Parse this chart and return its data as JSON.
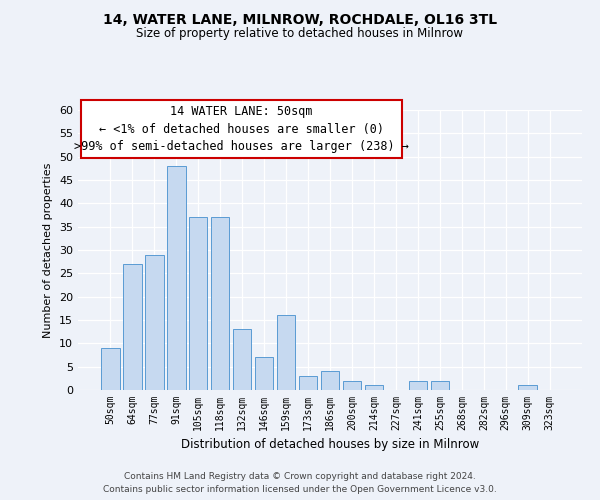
{
  "title": "14, WATER LANE, MILNROW, ROCHDALE, OL16 3TL",
  "subtitle": "Size of property relative to detached houses in Milnrow",
  "xlabel": "Distribution of detached houses by size in Milnrow",
  "ylabel": "Number of detached properties",
  "footnote1": "Contains HM Land Registry data © Crown copyright and database right 2024.",
  "footnote2": "Contains public sector information licensed under the Open Government Licence v3.0.",
  "bar_labels": [
    "50sqm",
    "64sqm",
    "77sqm",
    "91sqm",
    "105sqm",
    "118sqm",
    "132sqm",
    "146sqm",
    "159sqm",
    "173sqm",
    "186sqm",
    "200sqm",
    "214sqm",
    "227sqm",
    "241sqm",
    "255sqm",
    "268sqm",
    "282sqm",
    "296sqm",
    "309sqm",
    "323sqm"
  ],
  "bar_values": [
    9,
    27,
    29,
    48,
    37,
    37,
    13,
    7,
    16,
    3,
    4,
    2,
    1,
    0,
    2,
    2,
    0,
    0,
    0,
    1,
    0
  ],
  "bar_color": "#c6d9f0",
  "bar_edge_color": "#5a9bd4",
  "ylim": [
    0,
    60
  ],
  "yticks": [
    0,
    5,
    10,
    15,
    20,
    25,
    30,
    35,
    40,
    45,
    50,
    55,
    60
  ],
  "annotation_title": "14 WATER LANE: 50sqm",
  "annotation_line1": "← <1% of detached houses are smaller (0)",
  "annotation_line2": ">99% of semi-detached houses are larger (238) →",
  "annotation_box_color": "#ffffff",
  "annotation_border_color": "#cc0000",
  "bg_color": "#eef2f9"
}
